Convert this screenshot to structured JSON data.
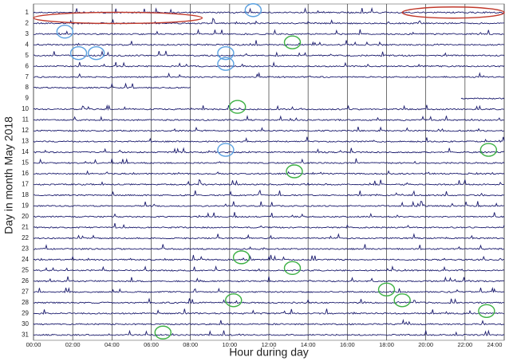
{
  "chart_data": {
    "type": "strip",
    "xlabel": "Hour during day",
    "ylabel": "Day in month May 2018",
    "categories": [
      "1",
      "2",
      "3",
      "4",
      "5",
      "6",
      "7",
      "8",
      "9",
      "10",
      "11",
      "12",
      "13",
      "14",
      "15",
      "16",
      "17",
      "18",
      "19",
      "20",
      "21",
      "22",
      "23",
      "24",
      "25",
      "26",
      "27",
      "28",
      "29",
      "30",
      "31"
    ],
    "spans": [
      [
        0,
        24
      ],
      [
        0,
        24
      ],
      [
        0,
        24
      ],
      [
        0,
        24
      ],
      [
        0,
        24
      ],
      [
        0,
        24
      ],
      [
        0,
        24
      ],
      [
        0,
        8
      ],
      [
        21.8,
        24
      ],
      [
        0,
        24
      ],
      [
        0,
        24
      ],
      [
        0,
        24
      ],
      [
        0,
        24
      ],
      [
        0,
        24
      ],
      [
        0,
        24
      ],
      [
        0,
        24
      ],
      [
        0,
        24
      ],
      [
        0,
        24
      ],
      [
        0,
        24
      ],
      [
        0,
        24
      ],
      [
        0,
        24
      ],
      [
        0,
        24
      ],
      [
        0,
        24
      ],
      [
        0,
        24
      ],
      [
        0,
        24
      ],
      [
        0,
        24
      ],
      [
        0,
        24
      ],
      [
        0,
        24
      ],
      [
        0,
        24
      ],
      [
        0,
        24
      ],
      [
        0,
        24
      ]
    ],
    "trace_color": "#1c1c6e",
    "xlim": [
      0,
      24
    ],
    "ylim": [
      0.5,
      31.5
    ],
    "xticks": [
      {
        "value": 0,
        "label": "00:00"
      },
      {
        "value": 2,
        "label": "02:00"
      },
      {
        "value": 4,
        "label": "04:00"
      },
      {
        "value": 6,
        "label": "06:00"
      },
      {
        "value": 8,
        "label": "08:00"
      },
      {
        "value": 10,
        "label": "10:00"
      },
      {
        "value": 12,
        "label": "12:00"
      },
      {
        "value": 14,
        "label": "14:00"
      },
      {
        "value": 16,
        "label": "16:00"
      },
      {
        "value": 18,
        "label": "18:00"
      },
      {
        "value": 20,
        "label": "20:00"
      },
      {
        "value": 22,
        "label": "22:00"
      },
      {
        "value": 24,
        "label": "24:00"
      }
    ],
    "circles": [
      {
        "day": 1,
        "hour": 11.2,
        "color": "#5aa0e0"
      },
      {
        "day": 3,
        "hour": 1.6,
        "color": "#5aa0e0"
      },
      {
        "day": 5,
        "hour": 2.3,
        "color": "#5aa0e0"
      },
      {
        "day": 5,
        "hour": 3.2,
        "color": "#5aa0e0"
      },
      {
        "day": 5,
        "hour": 9.8,
        "color": "#5aa0e0"
      },
      {
        "day": 6,
        "hour": 9.8,
        "color": "#5aa0e0"
      },
      {
        "day": 14,
        "hour": 9.8,
        "color": "#5aa0e0"
      },
      {
        "day": 4,
        "hour": 13.2,
        "color": "#3cb043"
      },
      {
        "day": 10,
        "hour": 10.4,
        "color": "#3cb043"
      },
      {
        "day": 14,
        "hour": 23.2,
        "color": "#3cb043"
      },
      {
        "day": 16,
        "hour": 13.3,
        "color": "#3cb043"
      },
      {
        "day": 24,
        "hour": 10.6,
        "color": "#3cb043"
      },
      {
        "day": 25,
        "hour": 13.2,
        "color": "#3cb043"
      },
      {
        "day": 27,
        "hour": 18,
        "color": "#3cb043"
      },
      {
        "day": 28,
        "hour": 10.2,
        "color": "#3cb043"
      },
      {
        "day": 28,
        "hour": 18.8,
        "color": "#3cb043"
      },
      {
        "day": 29,
        "hour": 23.1,
        "color": "#3cb043"
      },
      {
        "day": 31,
        "hour": 6.6,
        "color": "#3cb043"
      }
    ],
    "ellipses": [
      {
        "day": 1.5,
        "from": 0,
        "to": 8.6,
        "color": "#c0392b"
      },
      {
        "day": 1,
        "from": 18.8,
        "to": 24,
        "color": "#c0392b"
      }
    ]
  }
}
